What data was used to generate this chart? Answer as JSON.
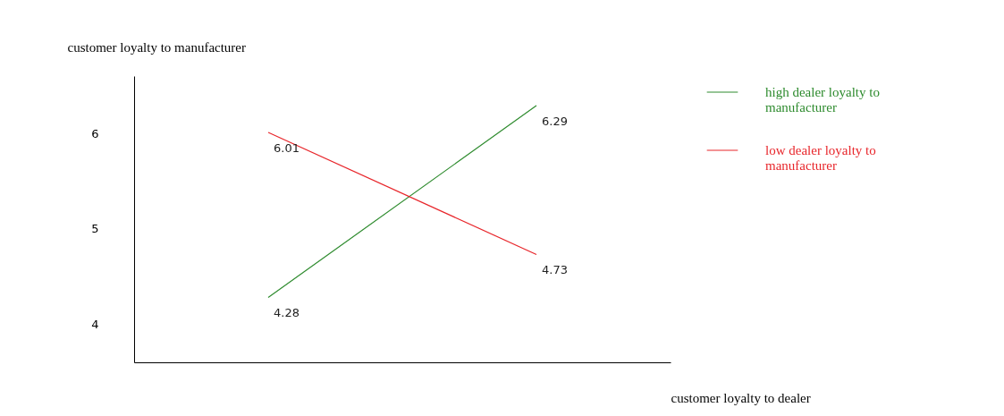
{
  "chart_data": {
    "type": "line",
    "xlabel": "customer loyalty to dealer",
    "ylabel": "customer loyalty to manufacturer",
    "categories": [
      null,
      null
    ],
    "series": [
      {
        "name": "high dealer loyalty to manufacturer",
        "color": "#2e8b2e",
        "values": [
          4.28,
          6.29
        ]
      },
      {
        "name": "low dealer loyalty to manufacturer",
        "color": "#e8262b",
        "values": [
          6.01,
          4.73
        ]
      }
    ],
    "ylim": [
      3.6,
      6.6
    ],
    "yticks": [
      4,
      5,
      6
    ],
    "data_labels": true,
    "legend": "top right",
    "grid": false,
    "marker": "none"
  }
}
